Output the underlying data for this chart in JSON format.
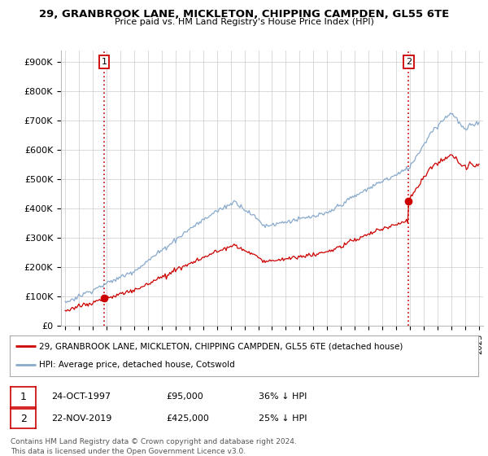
{
  "title": "29, GRANBROOK LANE, MICKLETON, CHIPPING CAMPDEN, GL55 6TE",
  "subtitle": "Price paid vs. HM Land Registry's House Price Index (HPI)",
  "ylabel_ticks": [
    "£0",
    "£100K",
    "£200K",
    "£300K",
    "£400K",
    "£500K",
    "£600K",
    "£700K",
    "£800K",
    "£900K"
  ],
  "ytick_values": [
    0,
    100000,
    200000,
    300000,
    400000,
    500000,
    600000,
    700000,
    800000,
    900000
  ],
  "ylim": [
    0,
    940000
  ],
  "xlim_start": 1994.7,
  "xlim_end": 2025.3,
  "sale1_date": 1997.82,
  "sale1_price": 95000,
  "sale2_date": 2019.9,
  "sale2_price": 425000,
  "legend_line1": "29, GRANBROOK LANE, MICKLETON, CHIPPING CAMPDEN, GL55 6TE (detached house)",
  "legend_line2": "HPI: Average price, detached house, Cotswold",
  "sale_color": "#cc0000",
  "hpi_color": "#88aacc",
  "background_color": "#ffffff",
  "grid_color": "#cccccc",
  "footer": "Contains HM Land Registry data © Crown copyright and database right 2024.\nThis data is licensed under the Open Government Licence v3.0."
}
